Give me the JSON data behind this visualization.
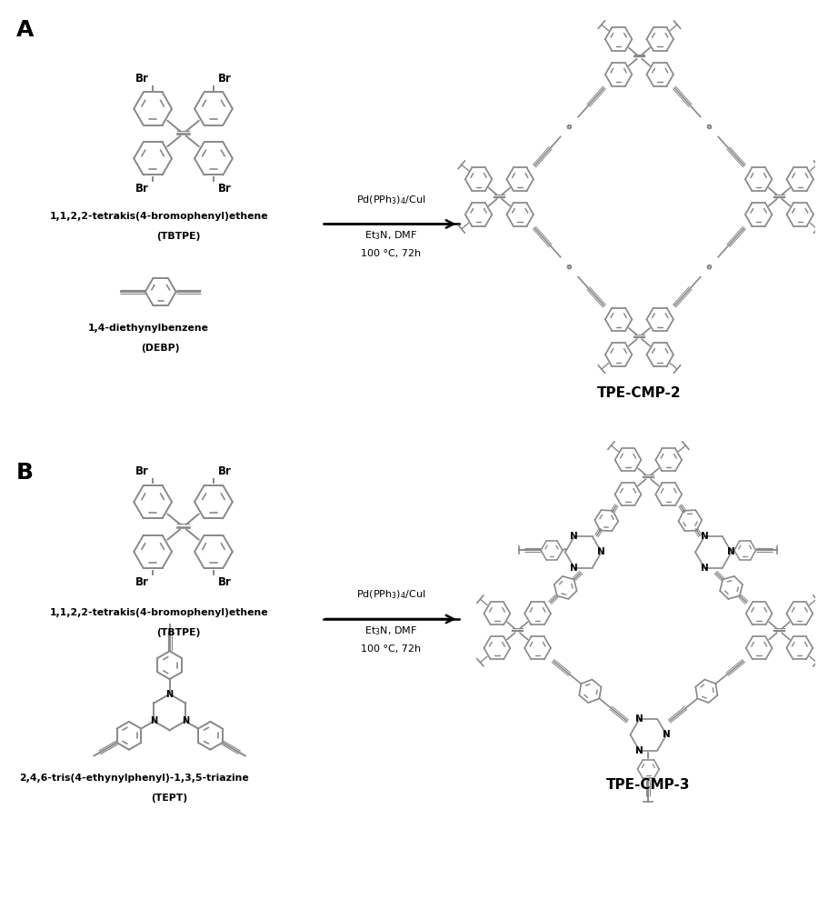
{
  "background_color": "#ffffff",
  "figure_width": 9.0,
  "figure_height": 10.0,
  "label_A": "A",
  "label_B": "B",
  "tbtpe_name": "1,1,2,2-tetrakis(4-bromophenyl)ethene",
  "tbtpe_abbr": "(TBTPE)",
  "debp_name": "1,4-diethynylbenzene",
  "debp_abbr": "(DEBP)",
  "tept_name": "2,4,6-tris(4-ethynylphenyl)-1,3,5-triazine",
  "tept_abbr": "(TEPT)",
  "rc1": "Pd(PPh$_3$)$_4$/CuI",
  "rc2": "Et$_3$N, DMF",
  "rc3": "100 °C, 72h",
  "product_A": "TPE-CMP-2",
  "product_B": "TPE-CMP-3",
  "sc": "#888888",
  "tc": "#000000",
  "lw": 1.4
}
